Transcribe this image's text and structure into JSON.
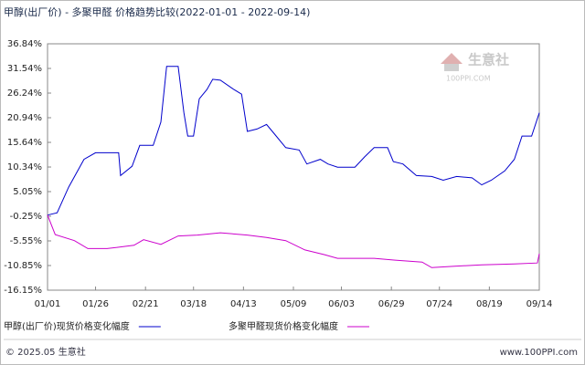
{
  "chart_data": {
    "type": "line",
    "title": "甲醇(出厂价) - 多聚甲醛 价格趋势比较(2022-01-01 - 2022-09-14)",
    "xlim": [
      "01/01",
      "09/14"
    ],
    "xticks": [
      "01/01",
      "01/26",
      "02/21",
      "03/18",
      "04/13",
      "05/09",
      "06/03",
      "06/29",
      "07/24",
      "08/19",
      "09/14"
    ],
    "ylim": [
      -16.15,
      36.84
    ],
    "yticks": [
      {
        "value": 36.84,
        "label": "36.84%"
      },
      {
        "value": 31.54,
        "label": "31.54%"
      },
      {
        "value": 26.24,
        "label": "26.24%"
      },
      {
        "value": 20.94,
        "label": "20.94%"
      },
      {
        "value": 15.64,
        "label": "15.64%"
      },
      {
        "value": 10.34,
        "label": "10.34%"
      },
      {
        "value": 5.05,
        "label": "5.05%"
      },
      {
        "value": -0.25,
        "label": "-0.25%"
      },
      {
        "value": -5.55,
        "label": "-5.55%"
      },
      {
        "value": -10.85,
        "label": "-10.85%"
      },
      {
        "value": -16.15,
        "label": "-16.15%"
      }
    ],
    "grid": false,
    "series": [
      {
        "name": "甲醇(出厂价)现货价格变化幅度",
        "color": "#0000cc",
        "x": [
          "01/01",
          "01/06",
          "01/12",
          "01/20",
          "01/26",
          "02/07",
          "02/08",
          "02/14",
          "02/18",
          "02/25",
          "03/01",
          "03/04",
          "03/10",
          "03/13",
          "03/15",
          "03/18",
          "03/21",
          "03/25",
          "03/28",
          "04/01",
          "04/08",
          "04/12",
          "04/15",
          "04/20",
          "04/25",
          "04/29",
          "05/05",
          "05/12",
          "05/16",
          "05/23",
          "05/27",
          "06/01",
          "06/10",
          "06/15",
          "06/20",
          "06/27",
          "06/30",
          "07/05",
          "07/12",
          "07/20",
          "07/26",
          "08/02",
          "08/10",
          "08/15",
          "08/20",
          "08/27",
          "09/01",
          "09/05",
          "09/10",
          "09/14"
        ],
        "values": [
          0,
          0.5,
          6,
          12,
          13.4,
          13.4,
          8.5,
          10.5,
          15,
          15,
          20,
          32,
          32,
          22,
          17,
          17,
          25,
          27,
          29.2,
          29,
          27,
          26,
          18,
          18.5,
          19.5,
          17.5,
          14.5,
          14,
          11,
          12,
          11,
          10.3,
          10.3,
          12.5,
          14.5,
          14.5,
          11.5,
          11,
          8.5,
          8.3,
          7.5,
          8.3,
          8,
          6.5,
          7.5,
          9.5,
          12,
          17,
          17,
          22
        ]
      },
      {
        "name": "多聚甲醛现货价格变化幅度",
        "color": "#cc00cc",
        "x": [
          "01/01",
          "01/05",
          "01/15",
          "01/22",
          "02/01",
          "02/15",
          "02/20",
          "03/01",
          "03/10",
          "03/20",
          "04/01",
          "04/15",
          "04/25",
          "05/05",
          "05/15",
          "05/25",
          "06/01",
          "06/20",
          "07/01",
          "07/15",
          "07/20",
          "08/01",
          "08/15",
          "09/01",
          "09/13",
          "09/14"
        ],
        "values": [
          0,
          -4.2,
          -5.5,
          -7.2,
          -7.2,
          -6.5,
          -5.3,
          -6.3,
          -4.5,
          -4.3,
          -3.8,
          -4.3,
          -4.8,
          -5.5,
          -7.5,
          -8.5,
          -9.3,
          -9.3,
          -9.7,
          -10.1,
          -11.3,
          -11,
          -10.7,
          -10.5,
          -10.3,
          -8.3
        ]
      }
    ]
  },
  "watermark": {
    "brand": "生意社",
    "site": "100PPI.COM"
  },
  "footer": {
    "left": "© 2025.05 生意社",
    "right": "www.100PPI.com"
  }
}
